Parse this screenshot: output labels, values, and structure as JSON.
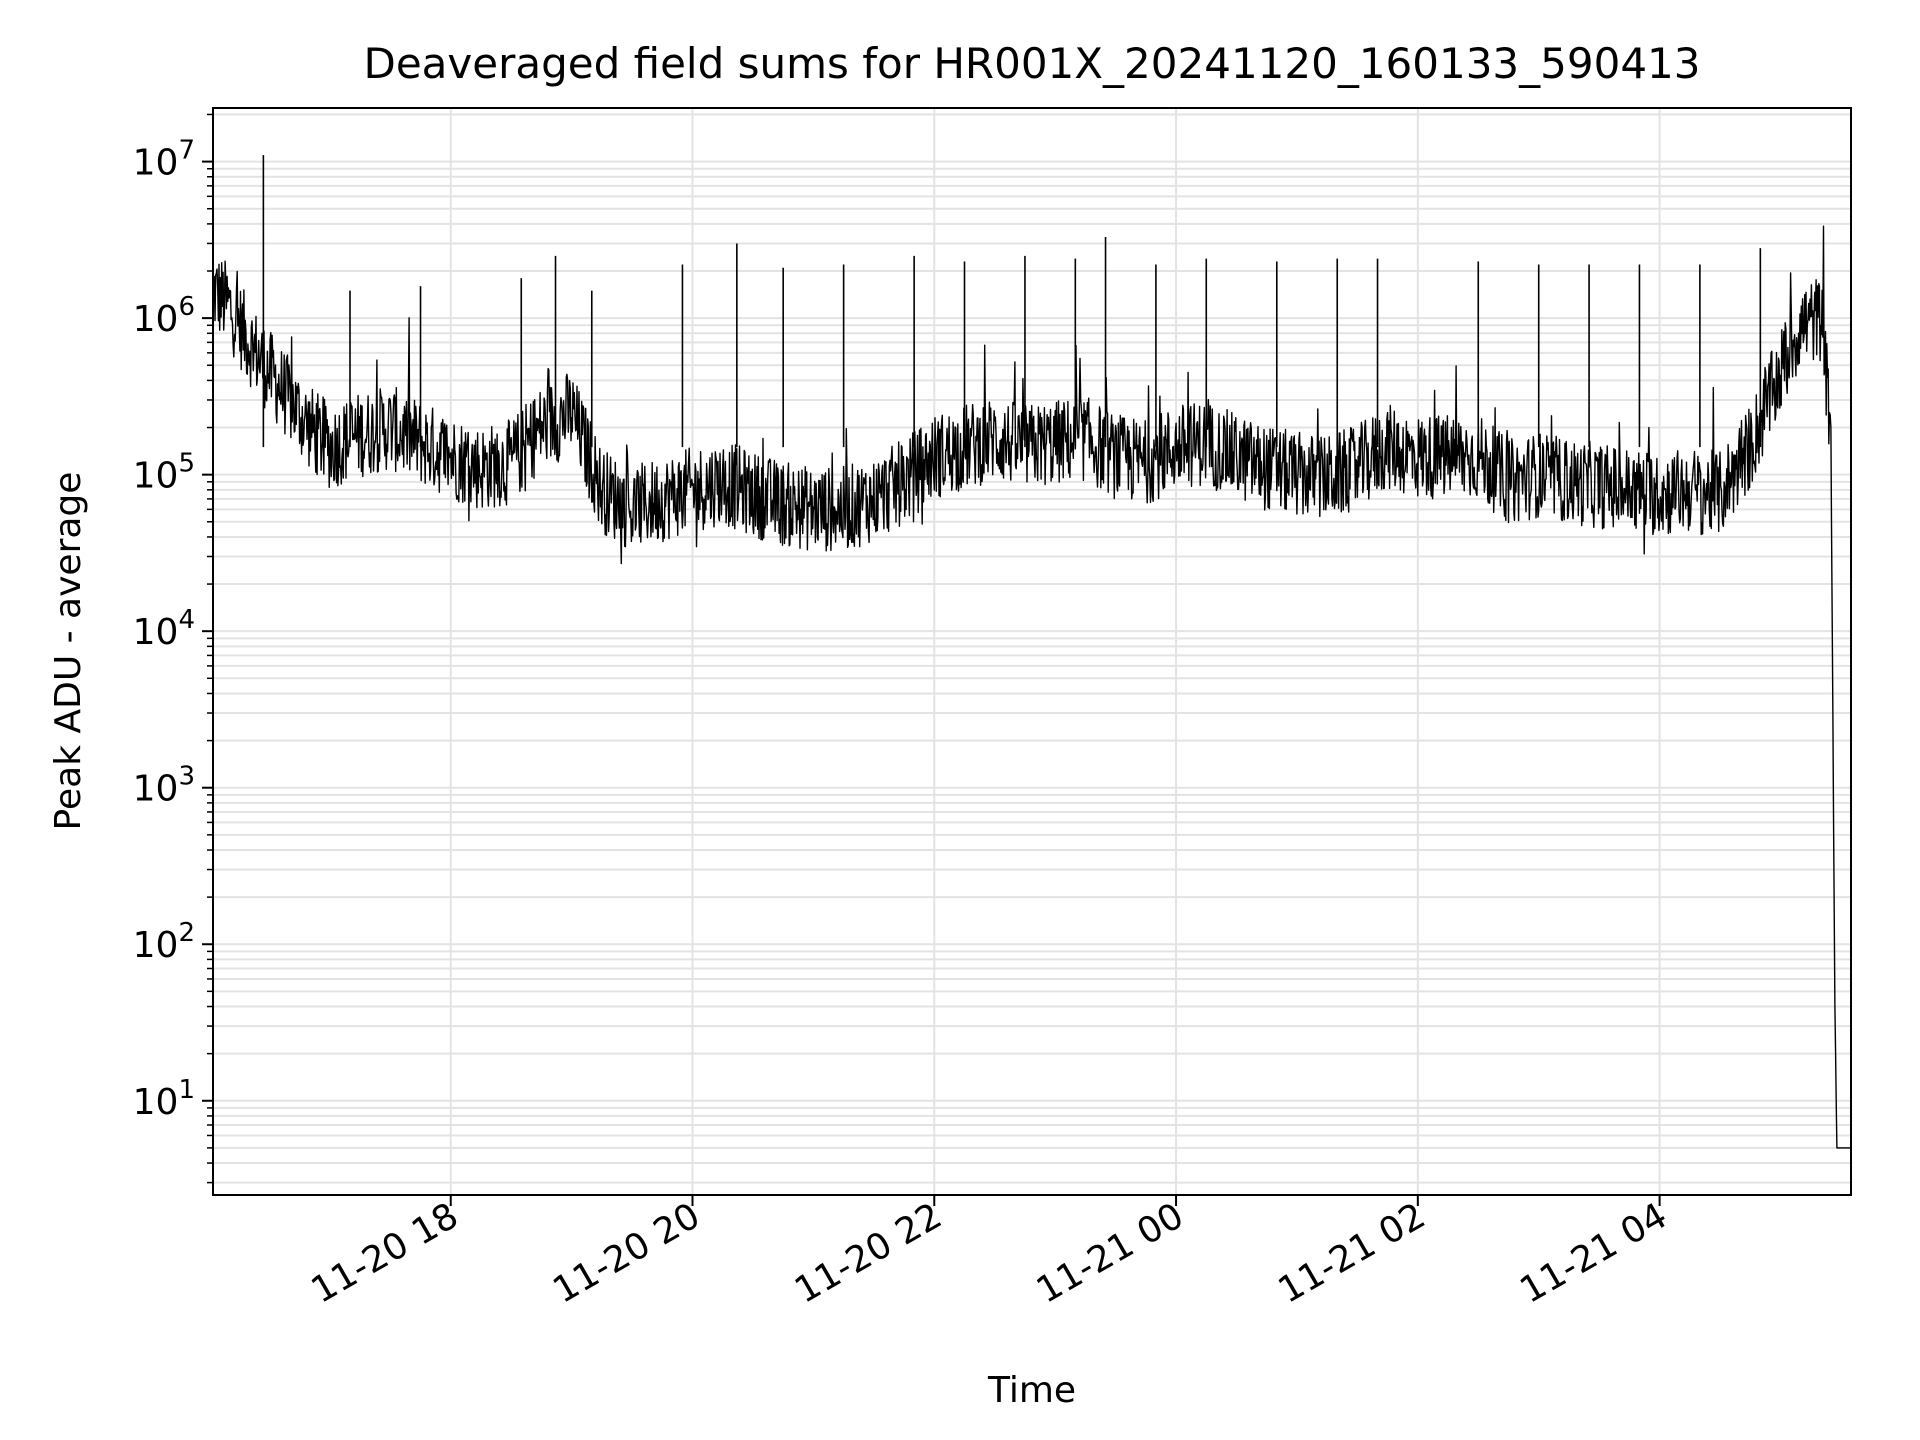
{
  "chart_data": {
    "type": "line",
    "title": "Deaveraged field sums for HR001X_20241120_160133_590413",
    "xlabel": "Time",
    "ylabel": "Peak ADU - average",
    "yscale": "log",
    "ylim": [
      2.5,
      22000000
    ],
    "xlim": [
      "2024-11-20 16:02",
      "2024-11-21 05:35"
    ],
    "grid": true,
    "colors": {
      "line": "#000000",
      "grid": "#e3e3e3",
      "axis": "#000000",
      "background": "#ffffff"
    },
    "x_ticks": [
      {
        "t": "2024-11-20 18:00",
        "label": "11-20 18"
      },
      {
        "t": "2024-11-20 20:00",
        "label": "11-20 20"
      },
      {
        "t": "2024-11-20 22:00",
        "label": "11-20 22"
      },
      {
        "t": "2024-11-21 00:00",
        "label": "11-21 00"
      },
      {
        "t": "2024-11-21 02:00",
        "label": "11-21 02"
      },
      {
        "t": "2024-11-21 04:00",
        "label": "11-21 04"
      }
    ],
    "y_ticks": [
      {
        "value": 10,
        "base": "10",
        "exp": "1"
      },
      {
        "value": 100,
        "base": "10",
        "exp": "2"
      },
      {
        "value": 1000,
        "base": "10",
        "exp": "3"
      },
      {
        "value": 10000,
        "base": "10",
        "exp": "4"
      },
      {
        "value": 100000,
        "base": "10",
        "exp": "5"
      },
      {
        "value": 1000000,
        "base": "10",
        "exp": "6"
      },
      {
        "value": 10000000,
        "base": "10",
        "exp": "7"
      }
    ],
    "series": [
      {
        "x": [
          "2024-11-20 16:02",
          "2024-11-20 16:10",
          "2024-11-20 16:20",
          "2024-11-20 16:30",
          "2024-11-20 16:40",
          "2024-11-20 16:50",
          "2024-11-20 17:00",
          "2024-11-20 17:15",
          "2024-11-20 17:30",
          "2024-11-20 17:45",
          "2024-11-20 18:00",
          "2024-11-20 18:15",
          "2024-11-20 18:30",
          "2024-11-20 18:45",
          "2024-11-20 19:00",
          "2024-11-20 19:15",
          "2024-11-20 19:30",
          "2024-11-20 19:45",
          "2024-11-20 20:00",
          "2024-11-20 20:15",
          "2024-11-20 20:30",
          "2024-11-20 20:45",
          "2024-11-20 21:00",
          "2024-11-20 21:15",
          "2024-11-20 21:30",
          "2024-11-20 21:45",
          "2024-11-20 22:00",
          "2024-11-20 22:15",
          "2024-11-20 22:30",
          "2024-11-20 22:45",
          "2024-11-20 23:00",
          "2024-11-20 23:15",
          "2024-11-20 23:30",
          "2024-11-20 23:45",
          "2024-11-21 00:00",
          "2024-11-21 00:15",
          "2024-11-21 00:30",
          "2024-11-21 00:45",
          "2024-11-21 01:00",
          "2024-11-21 01:15",
          "2024-11-21 01:30",
          "2024-11-21 01:45",
          "2024-11-21 02:00",
          "2024-11-21 02:15",
          "2024-11-21 02:30",
          "2024-11-21 02:45",
          "2024-11-21 03:00",
          "2024-11-21 03:15",
          "2024-11-21 03:30",
          "2024-11-21 03:45",
          "2024-11-21 04:00",
          "2024-11-21 04:15",
          "2024-11-21 04:30",
          "2024-11-21 04:45",
          "2024-11-21 05:00",
          "2024-11-21 05:10",
          "2024-11-21 05:20",
          "2024-11-21 05:25",
          "2024-11-21 05:27",
          "2024-11-21 05:28",
          "2024-11-21 05:30",
          "2024-11-21 05:35"
        ],
        "y": [
          1500000,
          1200000,
          700000,
          450000,
          300000,
          200000,
          150000,
          180000,
          200000,
          160000,
          130000,
          110000,
          120000,
          200000,
          250000,
          80000,
          60000,
          70000,
          80000,
          90000,
          75000,
          65000,
          60000,
          60000,
          70000,
          90000,
          130000,
          150000,
          170000,
          150000,
          160000,
          170000,
          130000,
          120000,
          150000,
          160000,
          130000,
          110000,
          100000,
          95000,
          110000,
          150000,
          130000,
          130000,
          130000,
          90000,
          100000,
          90000,
          85000,
          80000,
          75000,
          80000,
          75000,
          150000,
          450000,
          900000,
          1000000,
          200000,
          40,
          5,
          5,
          5
        ]
      }
    ],
    "spikes": [
      {
        "x": "2024-11-20 16:27",
        "y": 11000000
      },
      {
        "x": "2024-11-20 17:10",
        "y": 1500000
      },
      {
        "x": "2024-11-20 17:45",
        "y": 1600000
      },
      {
        "x": "2024-11-20 18:35",
        "y": 1800000
      },
      {
        "x": "2024-11-20 18:52",
        "y": 2500000
      },
      {
        "x": "2024-11-20 19:10",
        "y": 1500000
      },
      {
        "x": "2024-11-20 19:55",
        "y": 2200000
      },
      {
        "x": "2024-11-20 20:22",
        "y": 3000000
      },
      {
        "x": "2024-11-20 20:45",
        "y": 2100000
      },
      {
        "x": "2024-11-20 21:15",
        "y": 2200000
      },
      {
        "x": "2024-11-20 21:50",
        "y": 2500000
      },
      {
        "x": "2024-11-20 22:15",
        "y": 2300000
      },
      {
        "x": "2024-11-20 22:45",
        "y": 2500000
      },
      {
        "x": "2024-11-20 23:10",
        "y": 2400000
      },
      {
        "x": "2024-11-20 23:25",
        "y": 3300000
      },
      {
        "x": "2024-11-20 23:50",
        "y": 2200000
      },
      {
        "x": "2024-11-21 00:15",
        "y": 2400000
      },
      {
        "x": "2024-11-21 00:50",
        "y": 2300000
      },
      {
        "x": "2024-11-21 01:20",
        "y": 2400000
      },
      {
        "x": "2024-11-21 01:40",
        "y": 2400000
      },
      {
        "x": "2024-11-21 02:30",
        "y": 2300000
      },
      {
        "x": "2024-11-21 03:00",
        "y": 2200000
      },
      {
        "x": "2024-11-21 03:25",
        "y": 2200000
      },
      {
        "x": "2024-11-21 03:50",
        "y": 2200000
      },
      {
        "x": "2024-11-21 04:20",
        "y": 2200000
      },
      {
        "x": "2024-11-21 04:50",
        "y": 2800000
      }
    ]
  }
}
